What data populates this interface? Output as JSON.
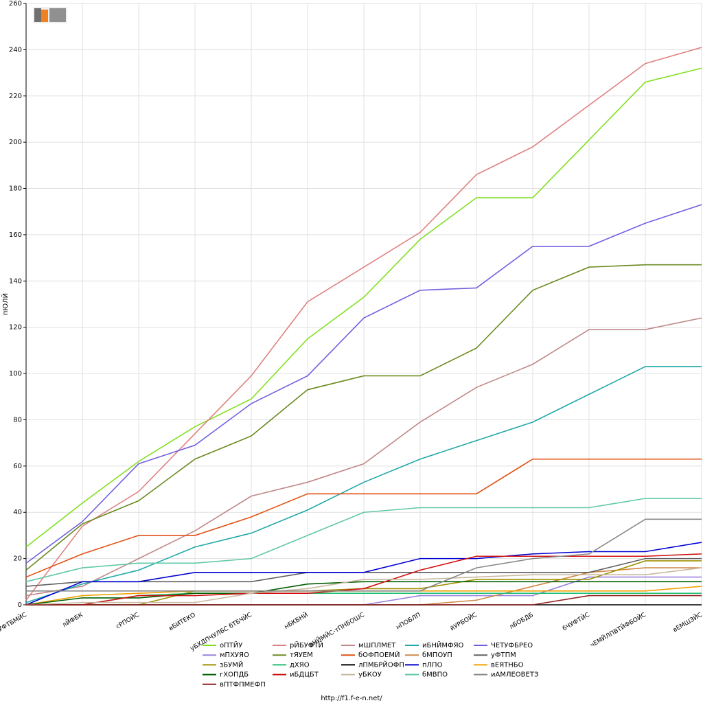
{
  "chart_data": {
    "type": "line",
    "y_label": "пЮЛЙ",
    "footer": "http://f1.f-e-n.net/",
    "categories": [
      "бЧУФТБМЙС",
      "лЙФБК",
      "сРПОЙС",
      "вБИТЕКО",
      "уБХДПЧУЛБС бТБЧЙС",
      "нБКБНЙ",
      "ьНЙМЙС-тПНБОШС",
      "нПОБЛП",
      "йУРБОЙС",
      "лБОБДБ",
      "бЧУФТЙС",
      "чЕМЙЛПВТЙФБОЙС",
      "вЕМШЗЙС"
    ],
    "ylim": [
      0,
      260
    ],
    "yticks": [
      0,
      20,
      40,
      60,
      80,
      100,
      120,
      140,
      160,
      180,
      200,
      220,
      240,
      260
    ],
    "grid": true,
    "series": [
      {
        "name": "оПТЙУ",
        "color": "#80e020",
        "values": [
          25,
          44,
          62,
          77,
          89,
          115,
          133,
          158,
          176,
          176,
          201,
          226,
          232
        ]
      },
      {
        "name": "рЙБУФТЙ",
        "color": "#e08080",
        "values": [
          2,
          34,
          49,
          74,
          99,
          131,
          146,
          161,
          186,
          198,
          216,
          234,
          241
        ]
      },
      {
        "name": "мШПЛМЕТ",
        "color": "#c08888",
        "values": [
          4,
          8,
          20,
          32,
          47,
          53,
          61,
          79,
          94,
          104,
          119,
          119,
          124
        ]
      },
      {
        "name": "иБНЙМФЯО",
        "color": "#20a8a8",
        "values": [
          1,
          9,
          15,
          25,
          31,
          41,
          53,
          63,
          71,
          79,
          91,
          103,
          103
        ]
      },
      {
        "name": "ЧЕТУФБРЕО",
        "color": "#7060e0",
        "values": [
          18,
          36,
          61,
          69,
          87,
          99,
          124,
          136,
          137,
          155,
          155,
          165,
          173
        ]
      },
      {
        "name": "мПХУЯО",
        "color": "#9a80e0",
        "values": [
          0,
          0,
          0,
          0,
          0,
          0,
          0,
          4,
          4,
          4,
          12,
          12,
          12
        ]
      },
      {
        "name": "тЯУЕМ",
        "color": "#6a8a20",
        "values": [
          15,
          35,
          45,
          63,
          73,
          93,
          99,
          99,
          111,
          136,
          146,
          147,
          147
        ]
      },
      {
        "name": "бОФПОЕМЙ",
        "color": "#e05010",
        "values": [
          12,
          22,
          30,
          30,
          38,
          48,
          48,
          48,
          48,
          63,
          63,
          63,
          63
        ]
      },
      {
        "name": "бМПОУП",
        "color": "#d08848",
        "values": [
          0,
          0,
          0,
          0,
          0,
          0,
          0,
          0,
          2,
          8,
          14,
          16,
          16
        ]
      },
      {
        "name": "уФТПМ",
        "color": "#606060",
        "values": [
          8,
          10,
          10,
          10,
          10,
          14,
          14,
          14,
          14,
          14,
          14,
          20,
          20
        ]
      },
      {
        "name": "зБУМЙ",
        "color": "#a09000",
        "values": [
          0,
          0,
          0,
          6,
          6,
          6,
          7,
          7,
          11,
          11,
          11,
          19,
          19
        ]
      },
      {
        "name": "дХЯО",
        "color": "#20c070",
        "values": [
          0,
          0,
          4,
          5,
          5,
          5,
          5,
          5,
          5,
          5,
          5,
          5,
          5
        ]
      },
      {
        "name": "лПМБРЙОФП",
        "color": "#000000",
        "values": [
          0,
          0,
          0,
          0,
          0,
          0,
          0,
          0,
          0,
          0,
          0,
          0,
          0
        ]
      },
      {
        "name": "пЛПО",
        "color": "#0000d0",
        "values": [
          0,
          10,
          10,
          14,
          14,
          14,
          14,
          20,
          20,
          22,
          23,
          23,
          27
        ]
      },
      {
        "name": "вЕЯТНБО",
        "color": "#f0a000",
        "values": [
          0,
          4,
          5,
          6,
          6,
          6,
          6,
          6,
          6,
          6,
          6,
          6,
          8
        ]
      },
      {
        "name": "гХОПДБ",
        "color": "#006000",
        "values": [
          0,
          3,
          3,
          5,
          5,
          9,
          10,
          10,
          10,
          10,
          10,
          10,
          10
        ]
      },
      {
        "name": "иБДЦБТ",
        "color": "#d01010",
        "values": [
          0,
          0,
          4,
          4,
          5,
          5,
          7,
          15,
          21,
          21,
          21,
          21,
          22
        ]
      },
      {
        "name": "уБКОУ",
        "color": "#c8b8a0",
        "values": [
          0,
          1,
          1,
          1,
          5,
          7,
          11,
          11,
          12,
          13,
          13,
          13,
          16
        ]
      },
      {
        "name": "бМВПО",
        "color": "#60c8a8",
        "values": [
          10,
          16,
          18,
          18,
          20,
          30,
          40,
          42,
          42,
          42,
          42,
          46,
          46
        ]
      },
      {
        "name": "иАМЛЕОВЕТЗ",
        "color": "#888888",
        "values": [
          6,
          6,
          6,
          6,
          6,
          6,
          6,
          6,
          16,
          20,
          22,
          37,
          37
        ]
      },
      {
        "name": "вПТФПМЕФП",
        "color": "#902020",
        "values": [
          0,
          0,
          0,
          0,
          0,
          0,
          0,
          0,
          0,
          0,
          4,
          4,
          4
        ]
      }
    ]
  }
}
